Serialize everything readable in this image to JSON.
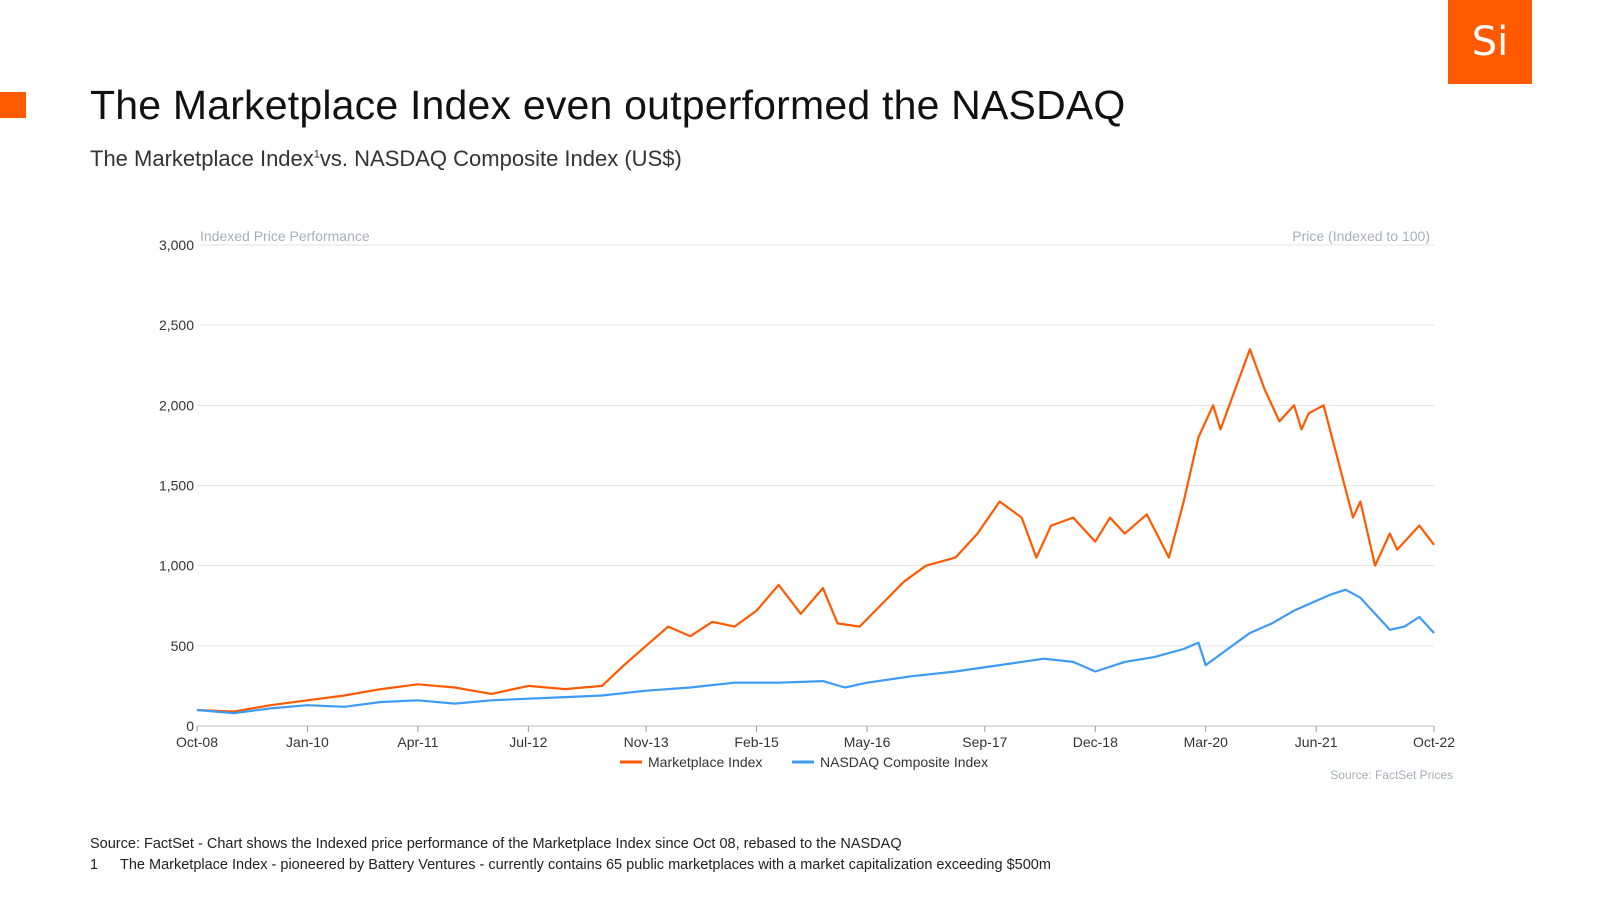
{
  "header": {
    "title": "The Marketplace Index even outperformed the NASDAQ",
    "subtitle_main": "The Marketplace Index",
    "subtitle_sup": "1",
    "subtitle_rest": "vs. NASDAQ Composite Index (US$)",
    "logo_text": "Si"
  },
  "colors": {
    "accent": "#ff5a00",
    "marketplace": "#ff5a00",
    "nasdaq": "#3d9bf5",
    "grid": "#e3e3e3",
    "muted": "#a8aeb8"
  },
  "chart_data": {
    "type": "line",
    "title": "",
    "left_label": "Indexed Price Performance",
    "right_label": "Price (Indexed to 100)",
    "xlabel": "",
    "ylabel": "",
    "ylim": [
      0,
      3000
    ],
    "y_ticks": [
      0,
      500,
      1000,
      1500,
      2000,
      2500,
      3000
    ],
    "y_tick_labels": [
      "0",
      "500",
      "1,000",
      "1,500",
      "2,000",
      "2,500",
      "3,000"
    ],
    "x_range": [
      0,
      168
    ],
    "x_tick_positions": [
      0,
      15,
      30,
      45,
      61,
      76,
      91,
      107,
      122,
      137,
      152,
      168
    ],
    "x_tick_labels": [
      "Oct-08",
      "Jan-10",
      "Apr-11",
      "Jul-12",
      "Nov-13",
      "Feb-15",
      "May-16",
      "Sep-17",
      "Dec-18",
      "Mar-20",
      "Jun-21",
      "Oct-22"
    ],
    "source_note": "Source: FactSet Prices",
    "series": [
      {
        "name": "Marketplace Index",
        "x": [
          0,
          5,
          10,
          15,
          20,
          25,
          30,
          35,
          40,
          45,
          50,
          55,
          58,
          61,
          64,
          67,
          70,
          73,
          76,
          79,
          82,
          85,
          87,
          90,
          93,
          96,
          99,
          103,
          106,
          109,
          112,
          114,
          116,
          119,
          122,
          124,
          126,
          129,
          132,
          134,
          136,
          138,
          139,
          141,
          143,
          145,
          147,
          149,
          150,
          151,
          153,
          155,
          157,
          158,
          160,
          162,
          163,
          165,
          166,
          168
        ],
        "y": [
          100,
          90,
          130,
          160,
          190,
          230,
          260,
          240,
          200,
          250,
          230,
          250,
          380,
          500,
          620,
          560,
          650,
          620,
          720,
          880,
          700,
          860,
          640,
          620,
          760,
          900,
          1000,
          1050,
          1200,
          1400,
          1300,
          1050,
          1250,
          1300,
          1150,
          1300,
          1200,
          1320,
          1050,
          1400,
          1800,
          2000,
          1850,
          2100,
          2350,
          2100,
          1900,
          2000,
          1850,
          1950,
          2000,
          1650,
          1300,
          1400,
          1000,
          1200,
          1100,
          1200,
          1250,
          1130
        ]
      },
      {
        "name": "NASDAQ Composite Index",
        "x": [
          0,
          5,
          10,
          15,
          20,
          25,
          30,
          35,
          40,
          45,
          50,
          55,
          61,
          67,
          73,
          79,
          85,
          88,
          91,
          97,
          103,
          109,
          115,
          119,
          122,
          126,
          130,
          134,
          136,
          137,
          140,
          143,
          146,
          149,
          152,
          154,
          156,
          158,
          159,
          160,
          162,
          164,
          166,
          168
        ],
        "y": [
          100,
          80,
          110,
          130,
          120,
          150,
          160,
          140,
          160,
          170,
          180,
          190,
          220,
          240,
          270,
          270,
          280,
          240,
          270,
          310,
          340,
          380,
          420,
          400,
          340,
          400,
          430,
          480,
          520,
          380,
          480,
          580,
          640,
          720,
          780,
          820,
          850,
          800,
          750,
          700,
          600,
          620,
          680,
          580
        ]
      }
    ]
  },
  "footnotes": {
    "source": "Source: FactSet - Chart shows the Indexed price performance of the Marketplace Index since Oct 08, rebased to the NASDAQ",
    "note_number": "1",
    "note_text": "The Marketplace Index - pioneered by Battery Ventures - currently contains 65 public marketplaces with a market capitalization exceeding $500m"
  }
}
